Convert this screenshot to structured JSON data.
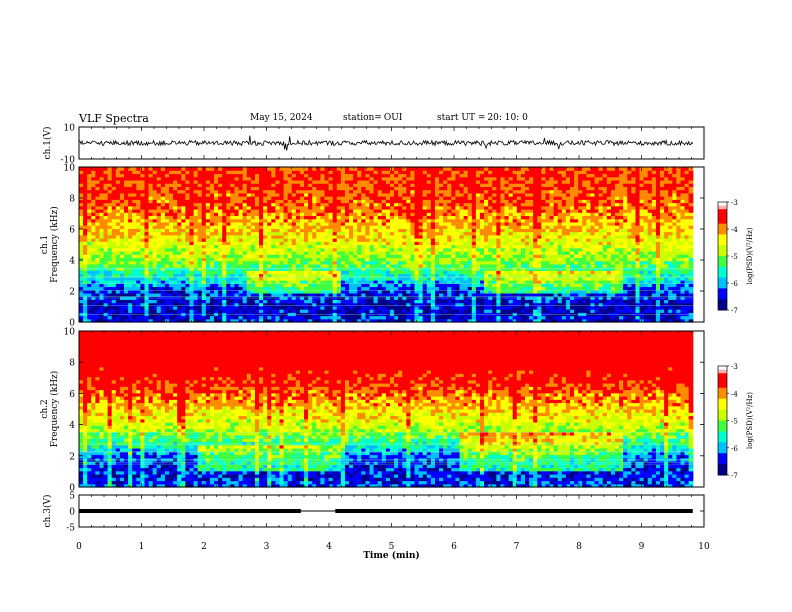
{
  "header": {
    "title": "VLF Spectra",
    "date": "May 15, 2024",
    "station_label": "station=",
    "station": "OUI",
    "start_label": "start  UT  =",
    "start": "20: 10: 0"
  },
  "colors": {
    "spectrogram_scale": [
      "#00008b",
      "#0000ff",
      "#00bfff",
      "#00ffd0",
      "#40ff40",
      "#c8ff00",
      "#ffff00",
      "#ff8c00",
      "#ff0000",
      "#ff0000"
    ]
  },
  "chart_data": [
    {
      "type": "line",
      "panel": "waveform",
      "ylabel": "ch.1(V)",
      "ylim": [
        -10,
        10
      ],
      "yticks": [
        "10",
        "-10"
      ],
      "description_values": {
        "baseline": 0,
        "noise_amplitude": 1.5,
        "spike_amplitude": 5
      }
    },
    {
      "type": "heatmap",
      "panel": "spectrogram",
      "ylabel_line1": "ch.1",
      "ylabel_line2": "Frequency (kHz)",
      "ylim": [
        0,
        10
      ],
      "yticks": [
        "0",
        "2",
        "4",
        "6",
        "8",
        "10"
      ],
      "colorbar": {
        "label": "log(PSD)(V²/Hz)",
        "range": [
          -7,
          -3
        ],
        "ticks": [
          "-3",
          "-4",
          "-5",
          "-6",
          "-7"
        ]
      },
      "profile": [
        -6.5,
        -6.6,
        -6.4,
        -5.6,
        -5.0,
        -4.6,
        -4.3,
        -4.0,
        -3.8,
        -3.7,
        -3.7
      ],
      "enhanced_bands": [
        {
          "t0": 2.7,
          "t1": 4.2,
          "f0": 1.8,
          "f1": 3.4
        },
        {
          "t0": 6.5,
          "t1": 8.7,
          "f0": 1.8,
          "f1": 3.4
        }
      ]
    },
    {
      "type": "heatmap",
      "panel": "spectrogram",
      "ylabel_line1": "ch.2",
      "ylabel_line2": "Frequency (kHz)",
      "ylim": [
        0,
        10
      ],
      "yticks": [
        "0",
        "2",
        "4",
        "6",
        "8",
        "10"
      ],
      "colorbar": {
        "label": "log(PSD)(V²/Hz)",
        "range": [
          -7,
          -3
        ],
        "ticks": [
          "-3",
          "-4",
          "-5",
          "-6",
          "-7"
        ]
      },
      "profile": [
        -6.3,
        -6.5,
        -6.2,
        -5.3,
        -4.7,
        -4.3,
        -3.9,
        -3.5,
        -3.3,
        -3.2,
        -3.1
      ],
      "enhanced_bands": [
        {
          "t0": 1.9,
          "t1": 4.2,
          "f0": 1.0,
          "f1": 2.8
        },
        {
          "t0": 6.1,
          "t1": 8.7,
          "f0": 1.0,
          "f1": 3.6
        }
      ]
    },
    {
      "type": "line",
      "panel": "waveform",
      "ylabel": "ch.3(V)",
      "ylim": [
        -5,
        5
      ],
      "yticks": [
        "5",
        "0",
        "-5"
      ],
      "description_values": {
        "baseline": 0,
        "gap_start_min": 3.55,
        "gap_end_min": 4.1
      }
    }
  ],
  "xaxis": {
    "label": "Time (min)",
    "xlim": [
      0,
      10
    ],
    "ticks": [
      "0",
      "1",
      "2",
      "3",
      "4",
      "5",
      "6",
      "7",
      "8",
      "9",
      "10"
    ],
    "data_end_min": 9.82
  }
}
